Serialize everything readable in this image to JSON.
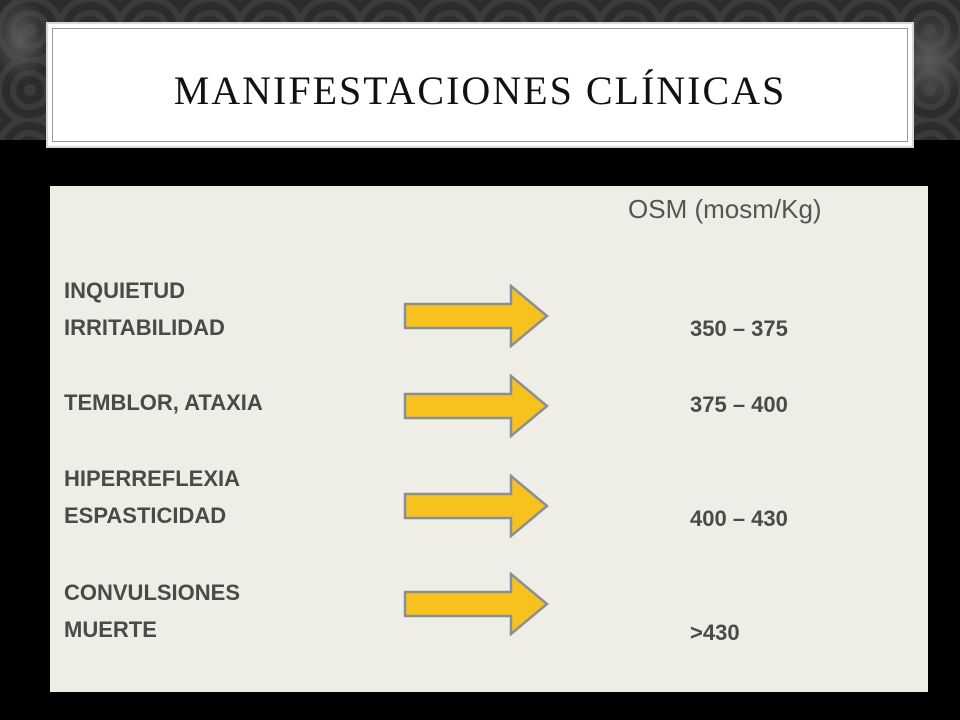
{
  "slide": {
    "title": "MANIFESTACIONES CLÍNICAS",
    "column_header": "OSM (mosm/Kg)",
    "rows": [
      {
        "labels": [
          "INQUIETUD",
          "IRRITABILIDAD"
        ],
        "value": "350 – 375"
      },
      {
        "labels": [
          "TEMBLOR, ATAXIA"
        ],
        "value": "375 – 400"
      },
      {
        "labels": [
          "HIPERREFLEXIA",
          "ESPASTICIDAD"
        ],
        "value": "400 – 430"
      },
      {
        "labels": [
          "CONVULSIONES",
          "MUERTE"
        ],
        "value": ">430"
      }
    ],
    "arrow_fill": "#f7c21d",
    "arrow_stroke": "#8a8f96",
    "arrow_icon": "right-arrow-icon"
  }
}
